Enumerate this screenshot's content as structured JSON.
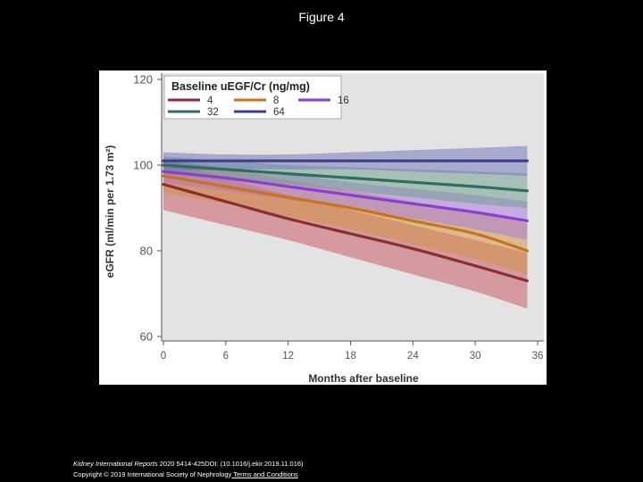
{
  "slide": {
    "title": "Figure 4"
  },
  "footer": {
    "journal": "Kidney International Reports",
    "citation": " 2020 5414-425DOI: (10.1016/j.ekir.2019.11.016) ",
    "copyright": "Copyright © 2019 International Society of Nephrology",
    "link_label": " Terms and Conditions"
  },
  "colors": {
    "plot_background": "#e3e3e3",
    "legend_background": "#ffffff"
  },
  "chart_data": {
    "type": "line",
    "title": "",
    "xlabel": "Months after baseline",
    "ylabel": "eGFR (ml/min per 1.73 m²)",
    "xlim": [
      0,
      36
    ],
    "ylim": [
      60,
      120
    ],
    "xticks": [
      "0",
      "6",
      "12",
      "18",
      "24",
      "30",
      "36"
    ],
    "yticks": [
      "60",
      "80",
      "100",
      "120"
    ],
    "grid": false,
    "legend_placement": "top-left",
    "legend_title": "Baseline uEGF/Cr (ng/mg)",
    "x": [
      0,
      6,
      12,
      18,
      24,
      30,
      35
    ],
    "series": [
      {
        "name": "4",
        "color": "#8b2e34",
        "band_color": "#c6525b",
        "values": [
          95.5,
          91.5,
          87.5,
          84,
          80.5,
          76.5,
          73
        ],
        "lower": [
          89.5,
          86,
          82.5,
          78.5,
          74.5,
          70.5,
          66.5
        ],
        "upper": [
          101.5,
          97,
          93,
          89.5,
          86,
          82.5,
          79.5
        ]
      },
      {
        "name": "8",
        "color": "#c8741c",
        "band_color": "#d4923f",
        "values": [
          97.5,
          95,
          92.5,
          90,
          87,
          84,
          80
        ],
        "lower": [
          93.5,
          91,
          88,
          85,
          81.5,
          78,
          74.5
        ],
        "upper": [
          101.5,
          99,
          96.5,
          94,
          91.5,
          89,
          86.5
        ]
      },
      {
        "name": "16",
        "color": "#8a3fd1",
        "band_color": "#a774dc",
        "values": [
          98.5,
          97,
          95,
          93,
          91,
          89,
          87
        ],
        "lower": [
          96,
          94,
          92,
          90,
          87.5,
          85,
          82.5
        ],
        "upper": [
          101,
          99.5,
          98,
          96,
          94.5,
          93,
          91.5
        ]
      },
      {
        "name": "32",
        "color": "#2e6e5a",
        "band_color": "#6a9d8c",
        "values": [
          100,
          99,
          98,
          97,
          96,
          95,
          94
        ],
        "lower": [
          98,
          96.5,
          95.5,
          94,
          92.5,
          91,
          90
        ],
        "upper": [
          102,
          101,
          100,
          99.5,
          99,
          98.5,
          98
        ]
      },
      {
        "name": "64",
        "color": "#3c3f8a",
        "band_color": "#6b6fb8",
        "values": [
          101,
          101,
          101,
          101,
          101,
          101,
          101
        ],
        "lower": [
          98.5,
          99,
          99,
          99,
          98.5,
          98,
          97.5
        ],
        "upper": [
          103,
          102.5,
          102.5,
          103,
          103.5,
          104,
          104.5
        ]
      }
    ]
  }
}
